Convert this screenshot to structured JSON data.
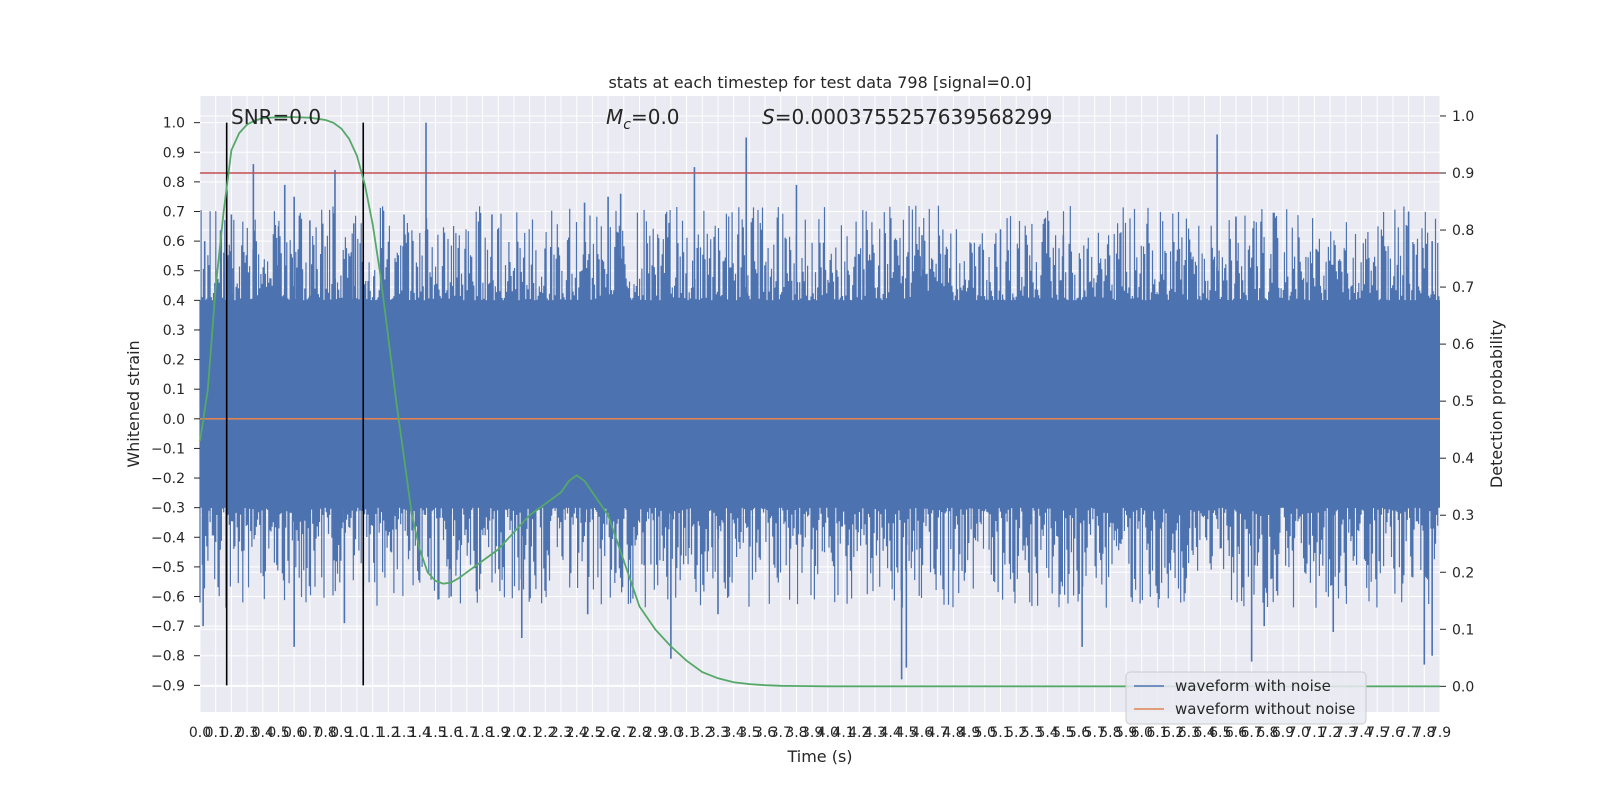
{
  "chart_data": {
    "type": "line",
    "title": "stats at each timestep for test data 798 [signal=0.0]",
    "xlabel": "Time (s)",
    "ylabel_left": "Whitened strain",
    "ylabel_right": "Detection probability",
    "xlim": [
      0.0,
      7.9
    ],
    "ylim_left": [
      -0.99,
      1.09
    ],
    "ylim_right": [
      -0.045,
      1.035
    ],
    "x_tick_step": 0.1,
    "y_left_ticks": [
      -0.9,
      -0.8,
      -0.7,
      -0.6,
      -0.5,
      -0.4,
      -0.3,
      -0.2,
      -0.1,
      0.0,
      0.1,
      0.2,
      0.3,
      0.4,
      0.5,
      0.6,
      0.7,
      0.8,
      0.9,
      1.0
    ],
    "y_right_ticks": [
      0.0,
      0.1,
      0.2,
      0.3,
      0.4,
      0.5,
      0.6,
      0.7,
      0.8,
      0.9,
      1.0
    ],
    "grid": true,
    "legend_position": "lower-right",
    "annotations": {
      "snr": "SNR=0.0",
      "mc_symbol": "M",
      "mc_sub": "c",
      "mc_value": "=0.0",
      "s_symbol": "S",
      "s_value": "=0.0003755257639568299"
    },
    "vertical_lines_x": [
      0.17,
      1.04
    ],
    "threshold_right": 0.9,
    "colors": {
      "background": "#eaeaf2",
      "grid": "#ffffff",
      "noisy": "#4c72b0",
      "clean": "#dd8452",
      "probability": "#55a868",
      "threshold": "#c44e52",
      "vline": "#000000"
    },
    "series": [
      {
        "name": "waveform with noise",
        "axis": "left",
        "x_range": [
          0.0,
          7.9
        ],
        "band": [
          -0.3,
          0.4
        ],
        "peaks_positive": [
          [
            0.03,
            0.6
          ],
          [
            0.17,
            0.72
          ],
          [
            0.2,
            0.69
          ],
          [
            0.34,
            0.86
          ],
          [
            0.5,
            0.65
          ],
          [
            0.54,
            0.79
          ],
          [
            0.6,
            0.75
          ],
          [
            0.7,
            0.67
          ],
          [
            0.86,
            0.84
          ],
          [
            0.98,
            0.66
          ],
          [
            1.3,
            0.69
          ],
          [
            1.44,
            1.0
          ],
          [
            1.86,
            0.69
          ],
          [
            2.45,
            0.73
          ],
          [
            2.6,
            0.75
          ],
          [
            2.68,
            0.76
          ],
          [
            3.15,
            0.85
          ],
          [
            3.48,
            0.95
          ],
          [
            3.8,
            0.79
          ],
          [
            4.6,
            0.62
          ],
          [
            5.1,
            0.64
          ],
          [
            5.5,
            0.62
          ],
          [
            6.48,
            0.96
          ],
          [
            6.6,
            0.68
          ],
          [
            7.7,
            0.7
          ],
          [
            7.85,
            0.6
          ]
        ],
        "peaks_negative": [
          [
            0.02,
            -0.7
          ],
          [
            0.6,
            -0.77
          ],
          [
            0.92,
            -0.69
          ],
          [
            1.6,
            -0.6
          ],
          [
            2.05,
            -0.74
          ],
          [
            2.47,
            -0.66
          ],
          [
            3.0,
            -0.81
          ],
          [
            3.3,
            -0.66
          ],
          [
            4.47,
            -0.88
          ],
          [
            4.5,
            -0.84
          ],
          [
            5.62,
            -0.77
          ],
          [
            6.7,
            -0.82
          ],
          [
            6.78,
            -0.7
          ],
          [
            7.22,
            -0.72
          ],
          [
            7.8,
            -0.83
          ],
          [
            7.85,
            -0.8
          ]
        ]
      },
      {
        "name": "waveform without noise",
        "axis": "left",
        "x": [
          0.0,
          7.9
        ],
        "y": [
          0.0,
          0.0
        ]
      },
      {
        "axis": "right",
        "x": [
          0.0,
          0.05,
          0.1,
          0.15,
          0.2,
          0.25,
          0.3,
          0.35,
          0.4,
          0.5,
          0.6,
          0.7,
          0.8,
          0.85,
          0.9,
          0.95,
          1.0,
          1.05,
          1.1,
          1.15,
          1.2,
          1.25,
          1.3,
          1.35,
          1.4,
          1.45,
          1.5,
          1.55,
          1.6,
          1.65,
          1.7,
          1.8,
          1.9,
          2.0,
          2.1,
          2.2,
          2.3,
          2.35,
          2.4,
          2.45,
          2.5,
          2.6,
          2.7,
          2.8,
          2.9,
          3.0,
          3.1,
          3.2,
          3.3,
          3.4,
          3.5,
          3.6,
          3.7,
          3.8,
          4.0,
          5.0,
          6.0,
          7.0,
          7.9
        ],
        "y": [
          0.43,
          0.52,
          0.7,
          0.83,
          0.94,
          0.97,
          0.985,
          0.992,
          0.996,
          0.998,
          0.998,
          0.997,
          0.993,
          0.988,
          0.978,
          0.96,
          0.93,
          0.88,
          0.81,
          0.72,
          0.61,
          0.5,
          0.4,
          0.3,
          0.24,
          0.2,
          0.185,
          0.18,
          0.182,
          0.19,
          0.2,
          0.22,
          0.24,
          0.27,
          0.3,
          0.32,
          0.34,
          0.36,
          0.37,
          0.36,
          0.34,
          0.3,
          0.22,
          0.14,
          0.1,
          0.07,
          0.045,
          0.025,
          0.014,
          0.007,
          0.004,
          0.002,
          0.001,
          0.0005,
          0.0,
          0.0,
          0.0,
          0.0,
          0.0
        ]
      }
    ]
  }
}
